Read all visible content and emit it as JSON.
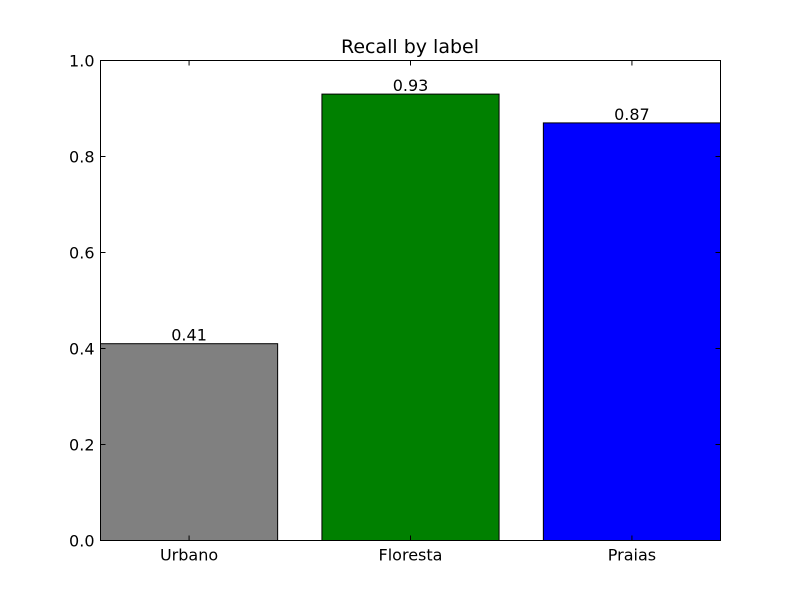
{
  "chart_data": {
    "type": "bar",
    "title": "Recall by label",
    "xlabel": "",
    "ylabel": "",
    "categories": [
      "Urbano",
      "Floresta",
      "Praias"
    ],
    "values": [
      0.41,
      0.93,
      0.87
    ],
    "value_labels": [
      "0.41",
      "0.93",
      "0.87"
    ],
    "colors": [
      "#808080",
      "#008000",
      "#0000ff"
    ],
    "ylim": [
      0,
      1.0
    ],
    "yticks": [
      0.0,
      0.2,
      0.4,
      0.6,
      0.8,
      1.0
    ],
    "ytick_labels": [
      "0.0",
      "0.2",
      "0.4",
      "0.6",
      "0.8",
      "1.0"
    ],
    "grid": false,
    "legend": "none"
  }
}
